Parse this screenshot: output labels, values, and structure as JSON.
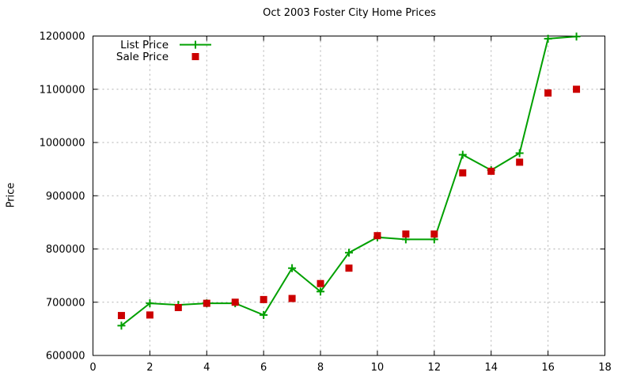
{
  "chart_data": {
    "type": "line",
    "title": "Oct 2003 Foster City Home Prices",
    "xlabel": "",
    "ylabel": "Price",
    "xlim": [
      0,
      18
    ],
    "ylim": [
      600000,
      1200000
    ],
    "xticks": [
      0,
      2,
      4,
      6,
      8,
      10,
      12,
      14,
      16,
      18
    ],
    "yticks": [
      600000,
      700000,
      800000,
      900000,
      1000000,
      1100000,
      1200000
    ],
    "grid": true,
    "legend_position": "top-left-inside",
    "x": [
      1,
      2,
      3,
      4,
      5,
      6,
      7,
      8,
      9,
      10,
      11,
      12,
      13,
      14,
      15,
      16,
      17
    ],
    "series": [
      {
        "name": "List Price",
        "marker": "cross",
        "line": true,
        "color": "#00a000",
        "values": [
          656000,
          698000,
          695000,
          698000,
          698000,
          676000,
          764000,
          720000,
          793000,
          822000,
          818000,
          818000,
          977000,
          948000,
          980000,
          1195000,
          1199000
        ]
      },
      {
        "name": "Sale Price",
        "marker": "square",
        "line": false,
        "color": "#cc0000",
        "values": [
          675000,
          676000,
          690000,
          698000,
          700000,
          705000,
          707000,
          735000,
          764000,
          825000,
          828000,
          828000,
          943000,
          946000,
          963000,
          1093000,
          1100000
        ]
      }
    ],
    "colors": {
      "grid": "#b0b0b0",
      "border": "#000000",
      "background": "#ffffff",
      "text": "#000000"
    }
  }
}
